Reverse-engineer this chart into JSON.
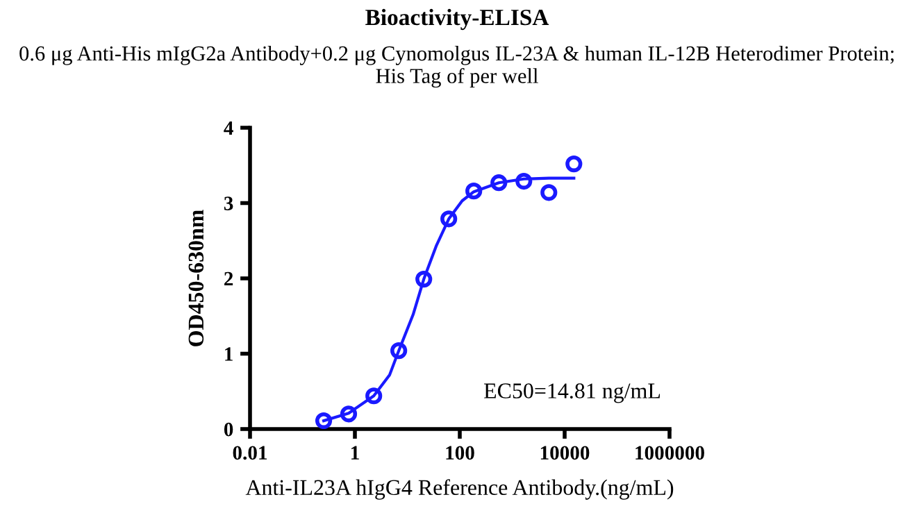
{
  "chart_data": {
    "type": "scatter",
    "title": "Bioactivity-ELISA",
    "subtitle": "0.6 μg Anti-His mIgG2a Antibody+0.2 μg Cynomolgus IL-23A & human IL-12B Heterodimer Protein; His Tag of per well",
    "xlabel": "Anti-IL23A hIgG4 Reference Antibody.(ng/mL)",
    "ylabel": "OD450-630nm",
    "log": "x",
    "xlim": [
      0.01,
      1000000
    ],
    "xticks": [
      0.01,
      1,
      100,
      10000,
      1000000
    ],
    "ylim": [
      0,
      4
    ],
    "yticks": [
      0,
      1,
      2,
      3,
      4
    ],
    "grid": false,
    "annotations": [
      "EC50=14.81 ng/mL"
    ],
    "series": [
      {
        "marker": "circle",
        "color": "#1a1aff",
        "x": [
          0.254,
          0.76,
          2.29,
          6.86,
          20.6,
          61.7,
          185,
          556,
          1667,
          5000,
          15000
        ],
        "values": [
          0.11,
          0.2,
          0.44,
          1.04,
          1.99,
          2.79,
          3.16,
          3.27,
          3.29,
          3.14,
          3.52
        ]
      },
      {
        "type": "line",
        "color": "#1a1aff",
        "x": [
          0.254,
          0.76,
          2.29,
          4.6,
          6.86,
          12.9,
          20.6,
          36,
          61.7,
          111,
          185,
          556,
          1667,
          5000,
          15000
        ],
        "values": [
          0.11,
          0.21,
          0.44,
          0.72,
          1.04,
          1.52,
          1.99,
          2.44,
          2.79,
          3.03,
          3.15,
          3.27,
          3.32,
          3.33,
          3.33
        ]
      }
    ]
  }
}
